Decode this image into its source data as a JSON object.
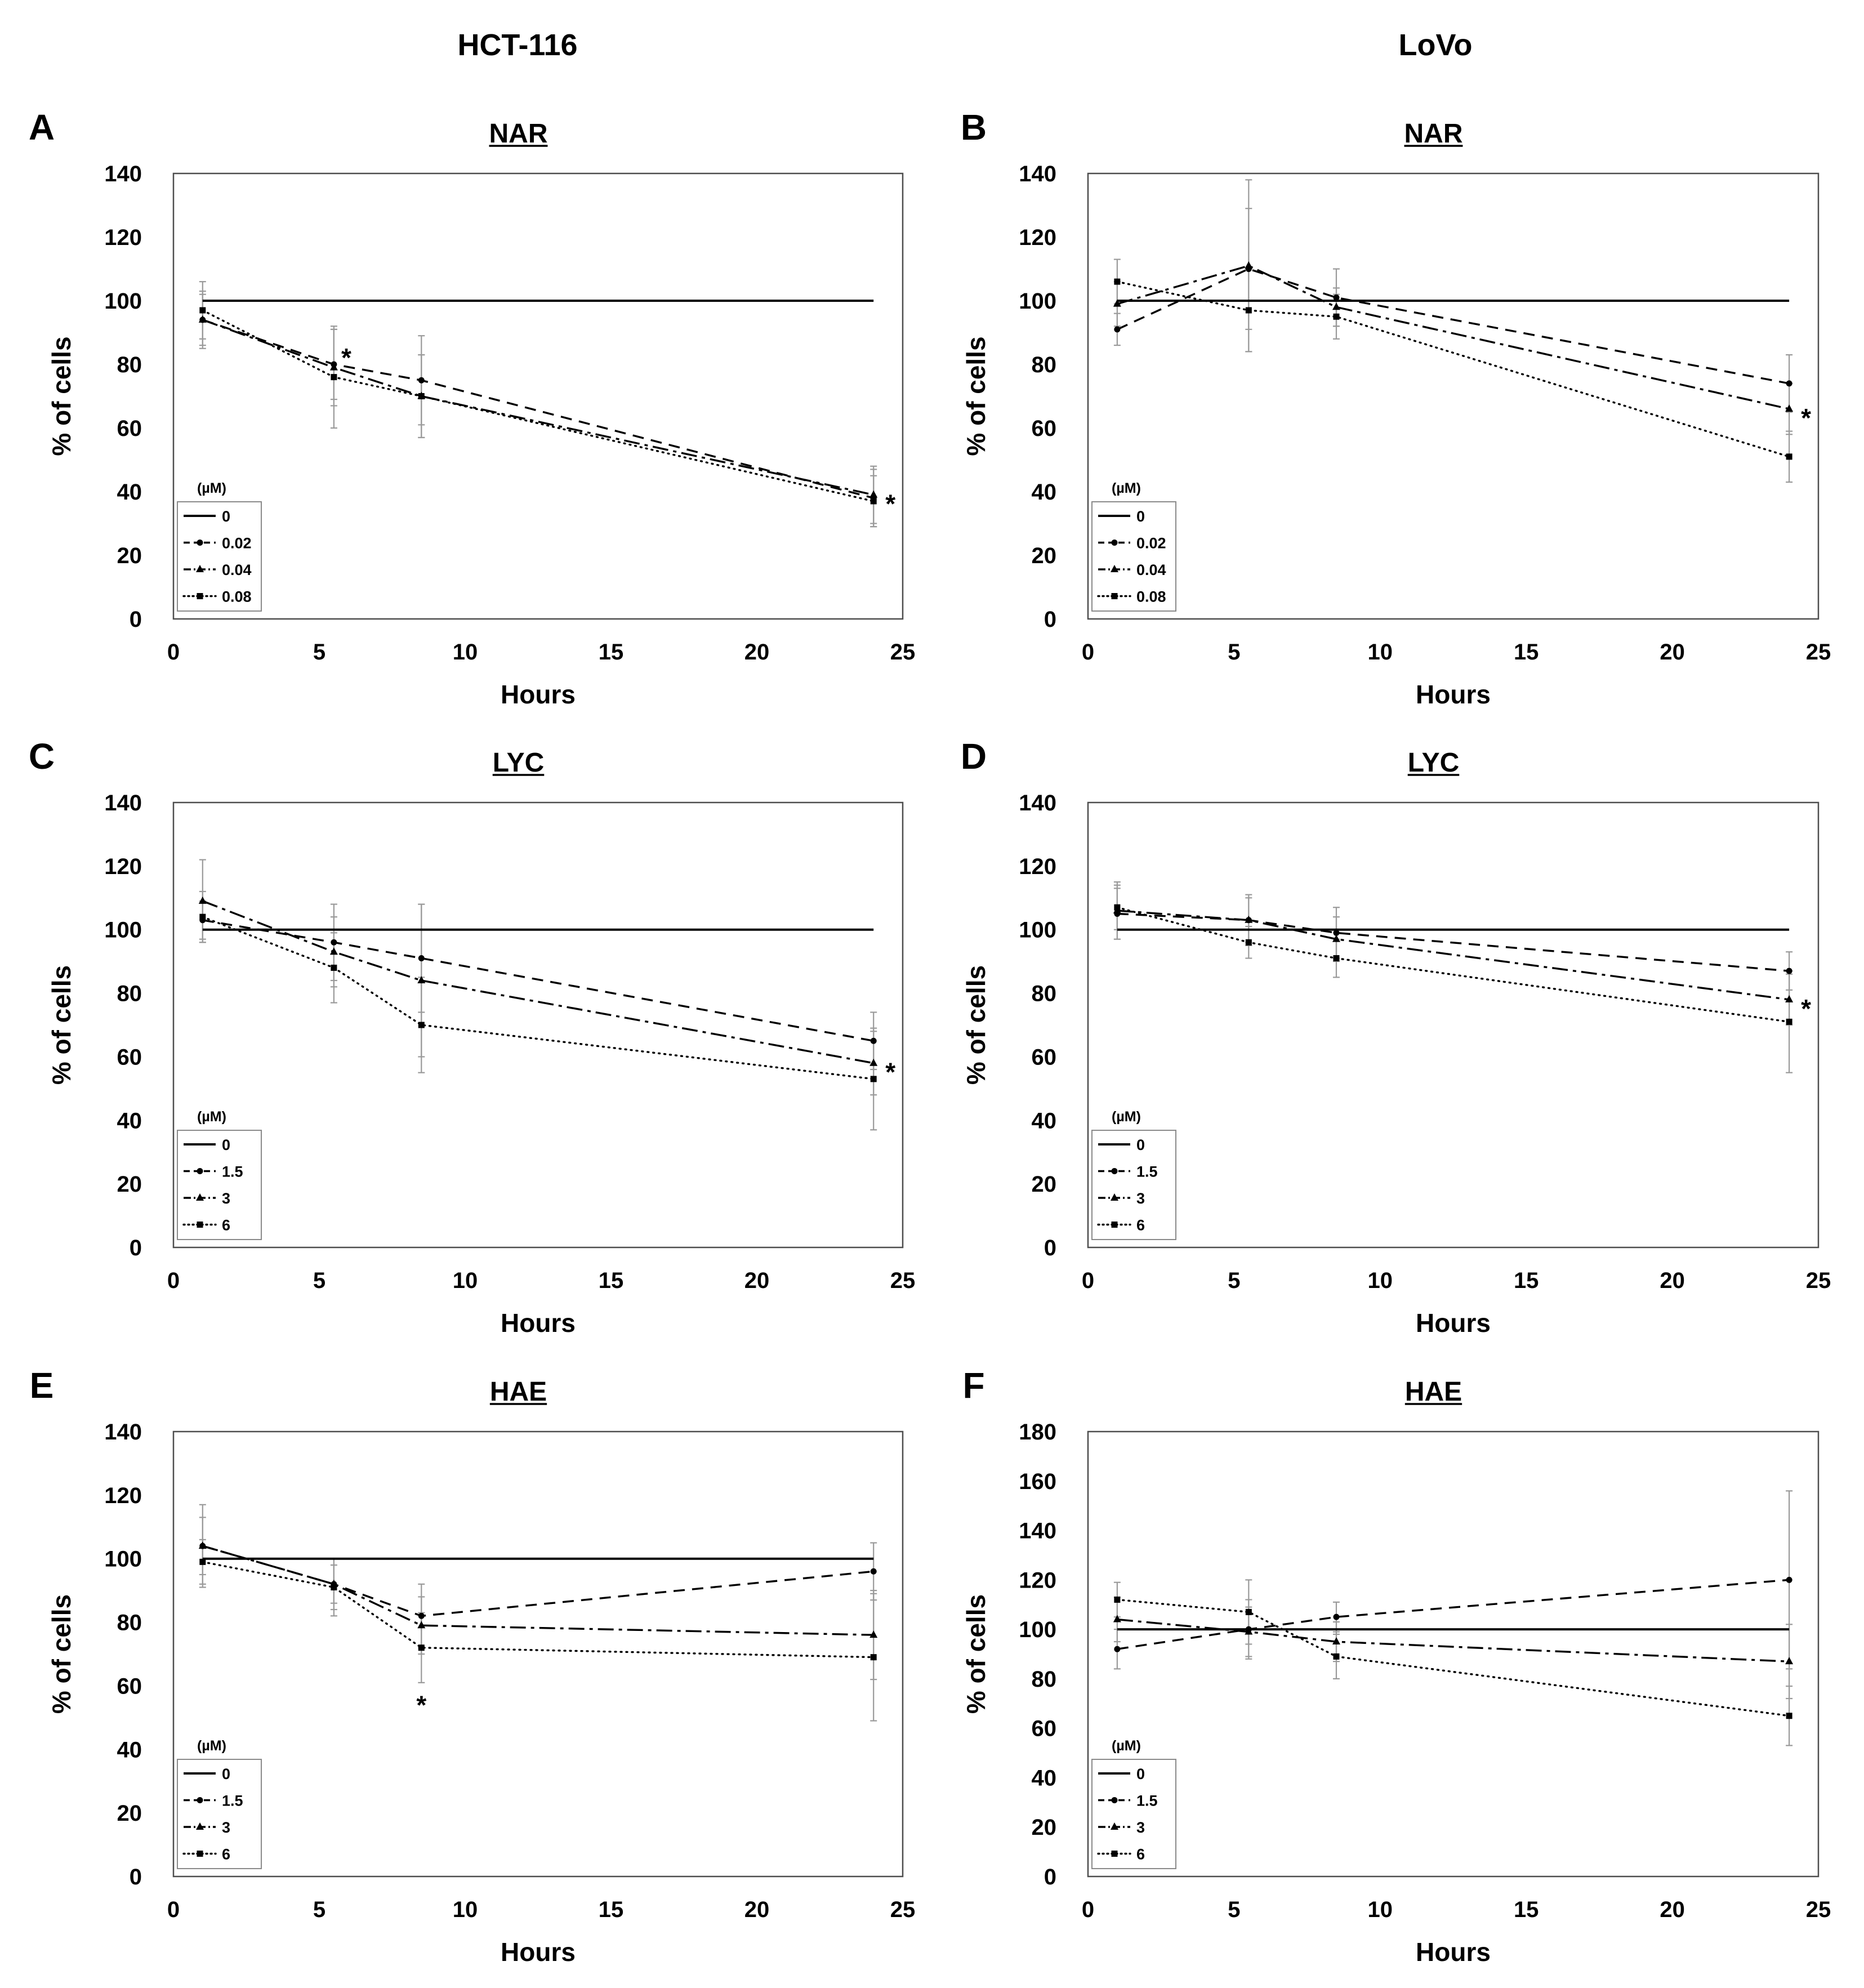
{
  "column_headers": {
    "left": "HCT-116",
    "right": "LoVo"
  },
  "colors": {
    "lines": "#000000",
    "error_bars": "#9a9a9a",
    "frame": "#4d4d4d"
  },
  "chart_data": [
    {
      "panel": "A",
      "type": "line",
      "title": "NAR",
      "xlabel": "Hours",
      "ylabel": "% of cells",
      "xlim": [
        0,
        25
      ],
      "ylim": [
        0,
        140
      ],
      "xticks": [
        0,
        5,
        10,
        15,
        20,
        25
      ],
      "yticks": [
        0,
        20,
        40,
        60,
        80,
        100,
        120,
        140
      ],
      "grid": false,
      "legend": {
        "title": "(µM)",
        "placement": "bottom-left"
      },
      "x": [
        1,
        5.5,
        8.5,
        24
      ],
      "series": [
        {
          "name": "0",
          "dash": "solid",
          "marker": "none",
          "values": [
            100,
            100,
            100,
            100
          ]
        },
        {
          "name": "0.02",
          "dash": "dashed",
          "marker": "circle",
          "values": [
            94,
            80,
            75,
            38
          ],
          "error": [
            8,
            11,
            14,
            9
          ]
        },
        {
          "name": "0.04",
          "dash": "dash-dot",
          "marker": "triangle",
          "values": [
            94,
            79,
            70,
            39
          ],
          "error": [
            9,
            12,
            13,
            9
          ]
        },
        {
          "name": "0.08",
          "dash": "dotted",
          "marker": "square",
          "values": [
            97,
            76,
            70,
            37
          ],
          "error": [
            9,
            16,
            13,
            8
          ]
        }
      ],
      "annotations": [
        {
          "text": "*",
          "x": 5.5,
          "series": "0.02",
          "placement": "above-right"
        },
        {
          "text": "*",
          "x": 24,
          "series": "0.04",
          "placement": "right"
        }
      ]
    },
    {
      "panel": "B",
      "type": "line",
      "title": "NAR",
      "xlabel": "Hours",
      "ylabel": "% of cells",
      "xlim": [
        0,
        25
      ],
      "ylim": [
        0,
        140
      ],
      "xticks": [
        0,
        5,
        10,
        15,
        20,
        25
      ],
      "yticks": [
        0,
        20,
        40,
        60,
        80,
        100,
        120,
        140
      ],
      "grid": false,
      "legend": {
        "title": "(µM)",
        "placement": "bottom-left"
      },
      "x": [
        1,
        5.5,
        8.5,
        24
      ],
      "series": [
        {
          "name": "0",
          "dash": "solid",
          "marker": "none",
          "values": [
            100,
            100,
            100,
            100
          ]
        },
        {
          "name": "0.02",
          "dash": "dashed",
          "marker": "circle",
          "values": [
            91,
            110,
            101,
            74
          ],
          "error": [
            5,
            19,
            9,
            9
          ]
        },
        {
          "name": "0.04",
          "dash": "dash-dot",
          "marker": "triangle",
          "values": [
            99,
            111,
            98,
            66
          ],
          "error": [
            7,
            27,
            6,
            8
          ]
        },
        {
          "name": "0.08",
          "dash": "dotted",
          "marker": "square",
          "values": [
            106,
            97,
            95,
            51
          ],
          "error": [
            7,
            13,
            7,
            8
          ]
        }
      ],
      "annotations": [
        {
          "text": "*",
          "x": 24,
          "series": "0.04",
          "placement": "right"
        }
      ]
    },
    {
      "panel": "C",
      "type": "line",
      "title": "LYC",
      "xlabel": "Hours",
      "ylabel": "% of cells",
      "xlim": [
        0,
        25
      ],
      "ylim": [
        0,
        140
      ],
      "xticks": [
        0,
        5,
        10,
        15,
        20,
        25
      ],
      "yticks": [
        0,
        20,
        40,
        60,
        80,
        100,
        120,
        140
      ],
      "grid": false,
      "legend": {
        "title": "(µM)",
        "placement": "bottom-left"
      },
      "x": [
        1,
        5.5,
        8.5,
        24
      ],
      "series": [
        {
          "name": "0",
          "dash": "solid",
          "marker": "none",
          "values": [
            100,
            100,
            100,
            100
          ]
        },
        {
          "name": "1.5",
          "dash": "dashed",
          "marker": "circle",
          "values": [
            103,
            96,
            91,
            65
          ],
          "error": [
            6,
            12,
            17,
            9
          ]
        },
        {
          "name": "3",
          "dash": "dash-dot",
          "marker": "triangle",
          "values": [
            109,
            93,
            84,
            58
          ],
          "error": [
            13,
            11,
            24,
            10
          ]
        },
        {
          "name": "6",
          "dash": "dotted",
          "marker": "square",
          "values": [
            104,
            88,
            70,
            53
          ],
          "error": [
            8,
            11,
            15,
            16
          ]
        }
      ],
      "annotations": [
        {
          "text": "*",
          "x": 24,
          "series": "3",
          "placement": "right"
        }
      ]
    },
    {
      "panel": "D",
      "type": "line",
      "title": "LYC",
      "xlabel": "Hours",
      "ylabel": "% of cells",
      "xlim": [
        0,
        25
      ],
      "ylim": [
        0,
        140
      ],
      "xticks": [
        0,
        5,
        10,
        15,
        20,
        25
      ],
      "yticks": [
        0,
        20,
        40,
        60,
        80,
        100,
        120,
        140
      ],
      "grid": false,
      "legend": {
        "title": "(µM)",
        "placement": "bottom-left"
      },
      "x": [
        1,
        5.5,
        8.5,
        24
      ],
      "series": [
        {
          "name": "0",
          "dash": "solid",
          "marker": "none",
          "values": [
            100,
            100,
            100,
            100
          ]
        },
        {
          "name": "1.5",
          "dash": "dashed",
          "marker": "circle",
          "values": [
            105,
            103,
            99,
            87
          ],
          "error": [
            8,
            7,
            8,
            6
          ]
        },
        {
          "name": "3",
          "dash": "dash-dot",
          "marker": "triangle",
          "values": [
            106,
            103,
            97,
            78
          ],
          "error": [
            9,
            8,
            7,
            8
          ]
        },
        {
          "name": "6",
          "dash": "dotted",
          "marker": "square",
          "values": [
            107,
            96,
            91,
            71
          ],
          "error": [
            7,
            5,
            6,
            16
          ]
        }
      ],
      "annotations": [
        {
          "text": "*",
          "x": 24,
          "series": "3",
          "placement": "right"
        }
      ]
    },
    {
      "panel": "E",
      "type": "line",
      "title": "HAE",
      "xlabel": "Hours",
      "ylabel": "% of cells",
      "xlim": [
        0,
        25
      ],
      "ylim": [
        0,
        140
      ],
      "xticks": [
        0,
        5,
        10,
        15,
        20,
        25
      ],
      "yticks": [
        0,
        20,
        40,
        60,
        80,
        100,
        120,
        140
      ],
      "grid": false,
      "legend": {
        "title": "(µM)",
        "placement": "bottom-left"
      },
      "x": [
        1,
        5.5,
        8.5,
        24
      ],
      "series": [
        {
          "name": "0",
          "dash": "solid",
          "marker": "none",
          "values": [
            100,
            100,
            100,
            100
          ]
        },
        {
          "name": "1.5",
          "dash": "dashed",
          "marker": "circle",
          "values": [
            104,
            92,
            82,
            96
          ],
          "error": [
            13,
            8,
            10,
            9
          ]
        },
        {
          "name": "3",
          "dash": "dash-dot",
          "marker": "triangle",
          "values": [
            104,
            92,
            79,
            76
          ],
          "error": [
            9,
            6,
            9,
            14
          ]
        },
        {
          "name": "6",
          "dash": "dotted",
          "marker": "square",
          "values": [
            99,
            91,
            72,
            69
          ],
          "error": [
            7,
            9,
            11,
            20
          ]
        }
      ],
      "annotations": [
        {
          "text": "*",
          "x": 8.5,
          "series": "6",
          "placement": "below"
        }
      ]
    },
    {
      "panel": "F",
      "type": "line",
      "title": "HAE",
      "xlabel": "Hours",
      "ylabel": "% of cells",
      "xlim": [
        0,
        25
      ],
      "ylim": [
        0,
        180
      ],
      "xticks": [
        0,
        5,
        10,
        15,
        20,
        25
      ],
      "yticks": [
        0,
        20,
        40,
        60,
        80,
        100,
        120,
        140,
        160,
        180
      ],
      "grid": false,
      "legend": {
        "title": "(µM)",
        "placement": "bottom-left"
      },
      "x": [
        1,
        5.5,
        8.5,
        24
      ],
      "series": [
        {
          "name": "0",
          "dash": "solid",
          "marker": "none",
          "values": [
            100,
            100,
            100,
            100
          ]
        },
        {
          "name": "1.5",
          "dash": "dashed",
          "marker": "circle",
          "values": [
            92,
            100,
            105,
            120
          ],
          "error": [
            8,
            12,
            6,
            36
          ]
        },
        {
          "name": "3",
          "dash": "dash-dot",
          "marker": "triangle",
          "values": [
            104,
            99,
            95,
            87
          ],
          "error": [
            9,
            10,
            8,
            15
          ]
        },
        {
          "name": "6",
          "dash": "dotted",
          "marker": "square",
          "values": [
            112,
            107,
            89,
            65
          ],
          "error": [
            7,
            13,
            9,
            12
          ]
        }
      ],
      "annotations": []
    }
  ]
}
